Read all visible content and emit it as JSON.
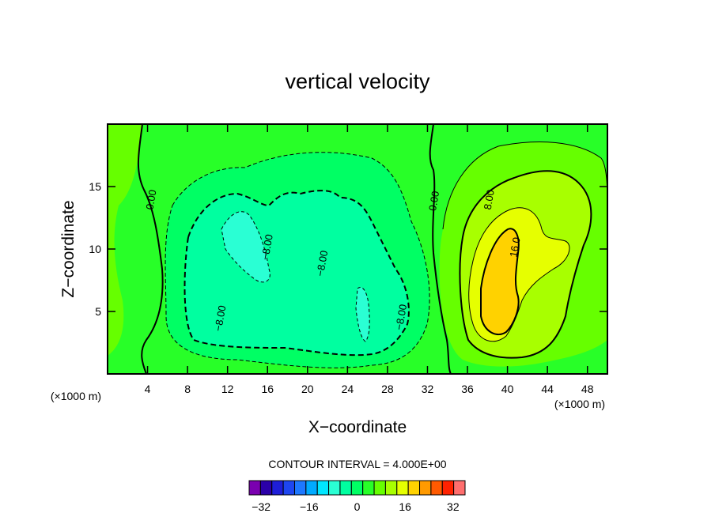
{
  "chart_data": {
    "type": "contour",
    "title": "vertical velocity",
    "xlabel": "X−coordinate",
    "ylabel": "Z−coordinate",
    "x_unit": "(×1000 m)",
    "y_unit": "(×1000 m)",
    "xlim": [
      0,
      50
    ],
    "ylim": [
      0,
      20
    ],
    "x_ticks": [
      4,
      8,
      12,
      16,
      20,
      24,
      28,
      32,
      36,
      40,
      44,
      48
    ],
    "y_ticks": [
      5,
      10,
      15
    ],
    "contour_interval_text": "CONTOUR INTERVAL = 4.000E+00",
    "contour_labels": [
      {
        "text": "0.00",
        "x": 4.7,
        "y": 13.9
      },
      {
        "text": "0.00",
        "x": 33.0,
        "y": 13.8
      },
      {
        "text": "−8.00",
        "x": 16.3,
        "y": 10.1
      },
      {
        "text": "−8.00",
        "x": 21.8,
        "y": 8.8
      },
      {
        "text": "−8.00",
        "x": 11.6,
        "y": 4.4
      },
      {
        "text": "−8.00",
        "x": 29.7,
        "y": 4.5
      },
      {
        "text": "8.00",
        "x": 38.5,
        "y": 13.9
      },
      {
        "text": "16.0",
        "x": 41.1,
        "y": 10.1
      }
    ],
    "colorbar": {
      "levels": [
        -36,
        -32,
        -28,
        -24,
        -20,
        -16,
        -12,
        -8,
        -4,
        0,
        4,
        8,
        12,
        16,
        20,
        24,
        28,
        32,
        36
      ],
      "tick_labels": [
        "−32",
        "−16",
        "0",
        "16",
        "32"
      ],
      "tick_values": [
        -32,
        -16,
        0,
        16,
        32
      ],
      "colors": [
        "#7a00b0",
        "#2b00a8",
        "#1e1ed8",
        "#1e46f0",
        "#1e78ff",
        "#00aaff",
        "#00e6ff",
        "#2affd4",
        "#00ffa0",
        "#00ff64",
        "#28ff28",
        "#66ff00",
        "#a8ff00",
        "#e6ff00",
        "#ffd200",
        "#ff9a00",
        "#ff5a00",
        "#ff2200",
        "#ff6e6e",
        "#ffa0a0"
      ]
    },
    "regions": [
      {
        "name": "background",
        "level": 0
      },
      {
        "name": "left-edge",
        "level": 4
      },
      {
        "name": "central-negative-outer",
        "level": -4
      },
      {
        "name": "central-negative-inner",
        "level": -8
      },
      {
        "name": "central-negative-core",
        "level": -12
      },
      {
        "name": "right-positive-outer",
        "level": 4
      },
      {
        "name": "right-positive-mid",
        "level": 8
      },
      {
        "name": "right-positive-inner",
        "level": 12
      },
      {
        "name": "right-positive-core",
        "level": 16
      }
    ]
  }
}
